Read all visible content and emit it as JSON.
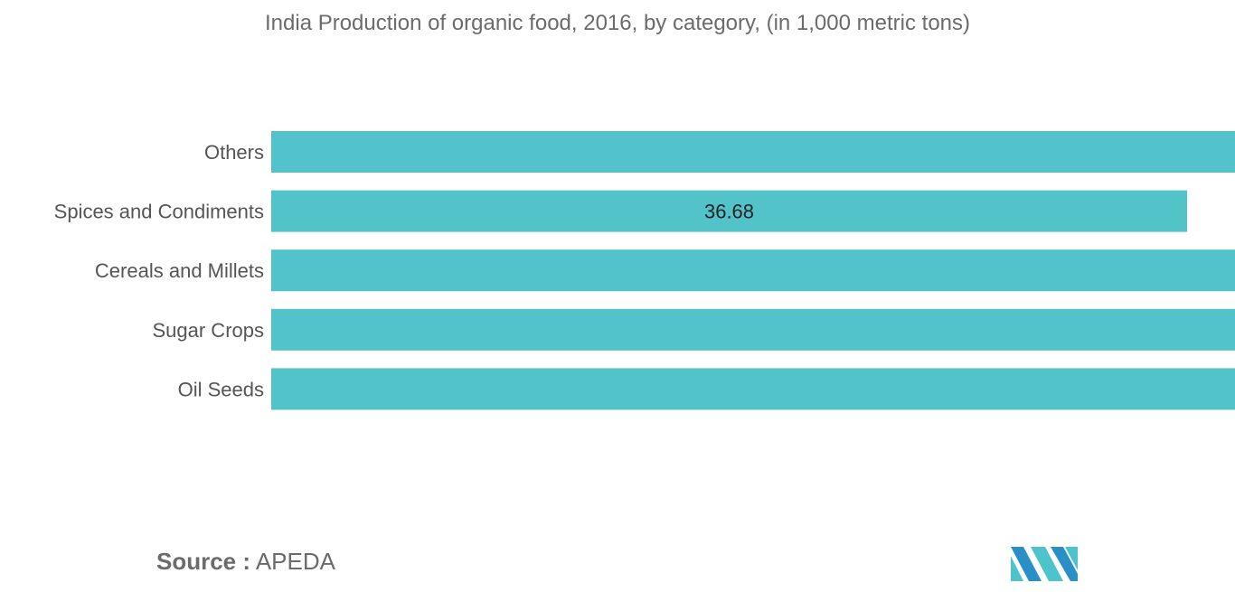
{
  "chart_data": {
    "type": "bar",
    "orientation": "horizontal",
    "title": "India Production of organic food, 2016, by category, (in 1,000 metric tons)",
    "categories": [
      "Others",
      "Spices and Condiments",
      "Cereals and Millets",
      "Sugar Crops",
      "Oil Seeds"
    ],
    "values": [
      null,
      36.68,
      null,
      null,
      null
    ],
    "data_labels": [
      "",
      "36.68",
      "",
      "",
      ""
    ],
    "xlabel": "",
    "ylabel": "",
    "grid": false,
    "legend": "none",
    "bar_color": "#52c3c9"
  },
  "source": {
    "label": "Source :",
    "value": "APEDA"
  },
  "logo": {
    "icon": "mordor-intelligence-logo-icon",
    "colors": [
      "#2a8fc7",
      "#4dc3cb"
    ]
  }
}
